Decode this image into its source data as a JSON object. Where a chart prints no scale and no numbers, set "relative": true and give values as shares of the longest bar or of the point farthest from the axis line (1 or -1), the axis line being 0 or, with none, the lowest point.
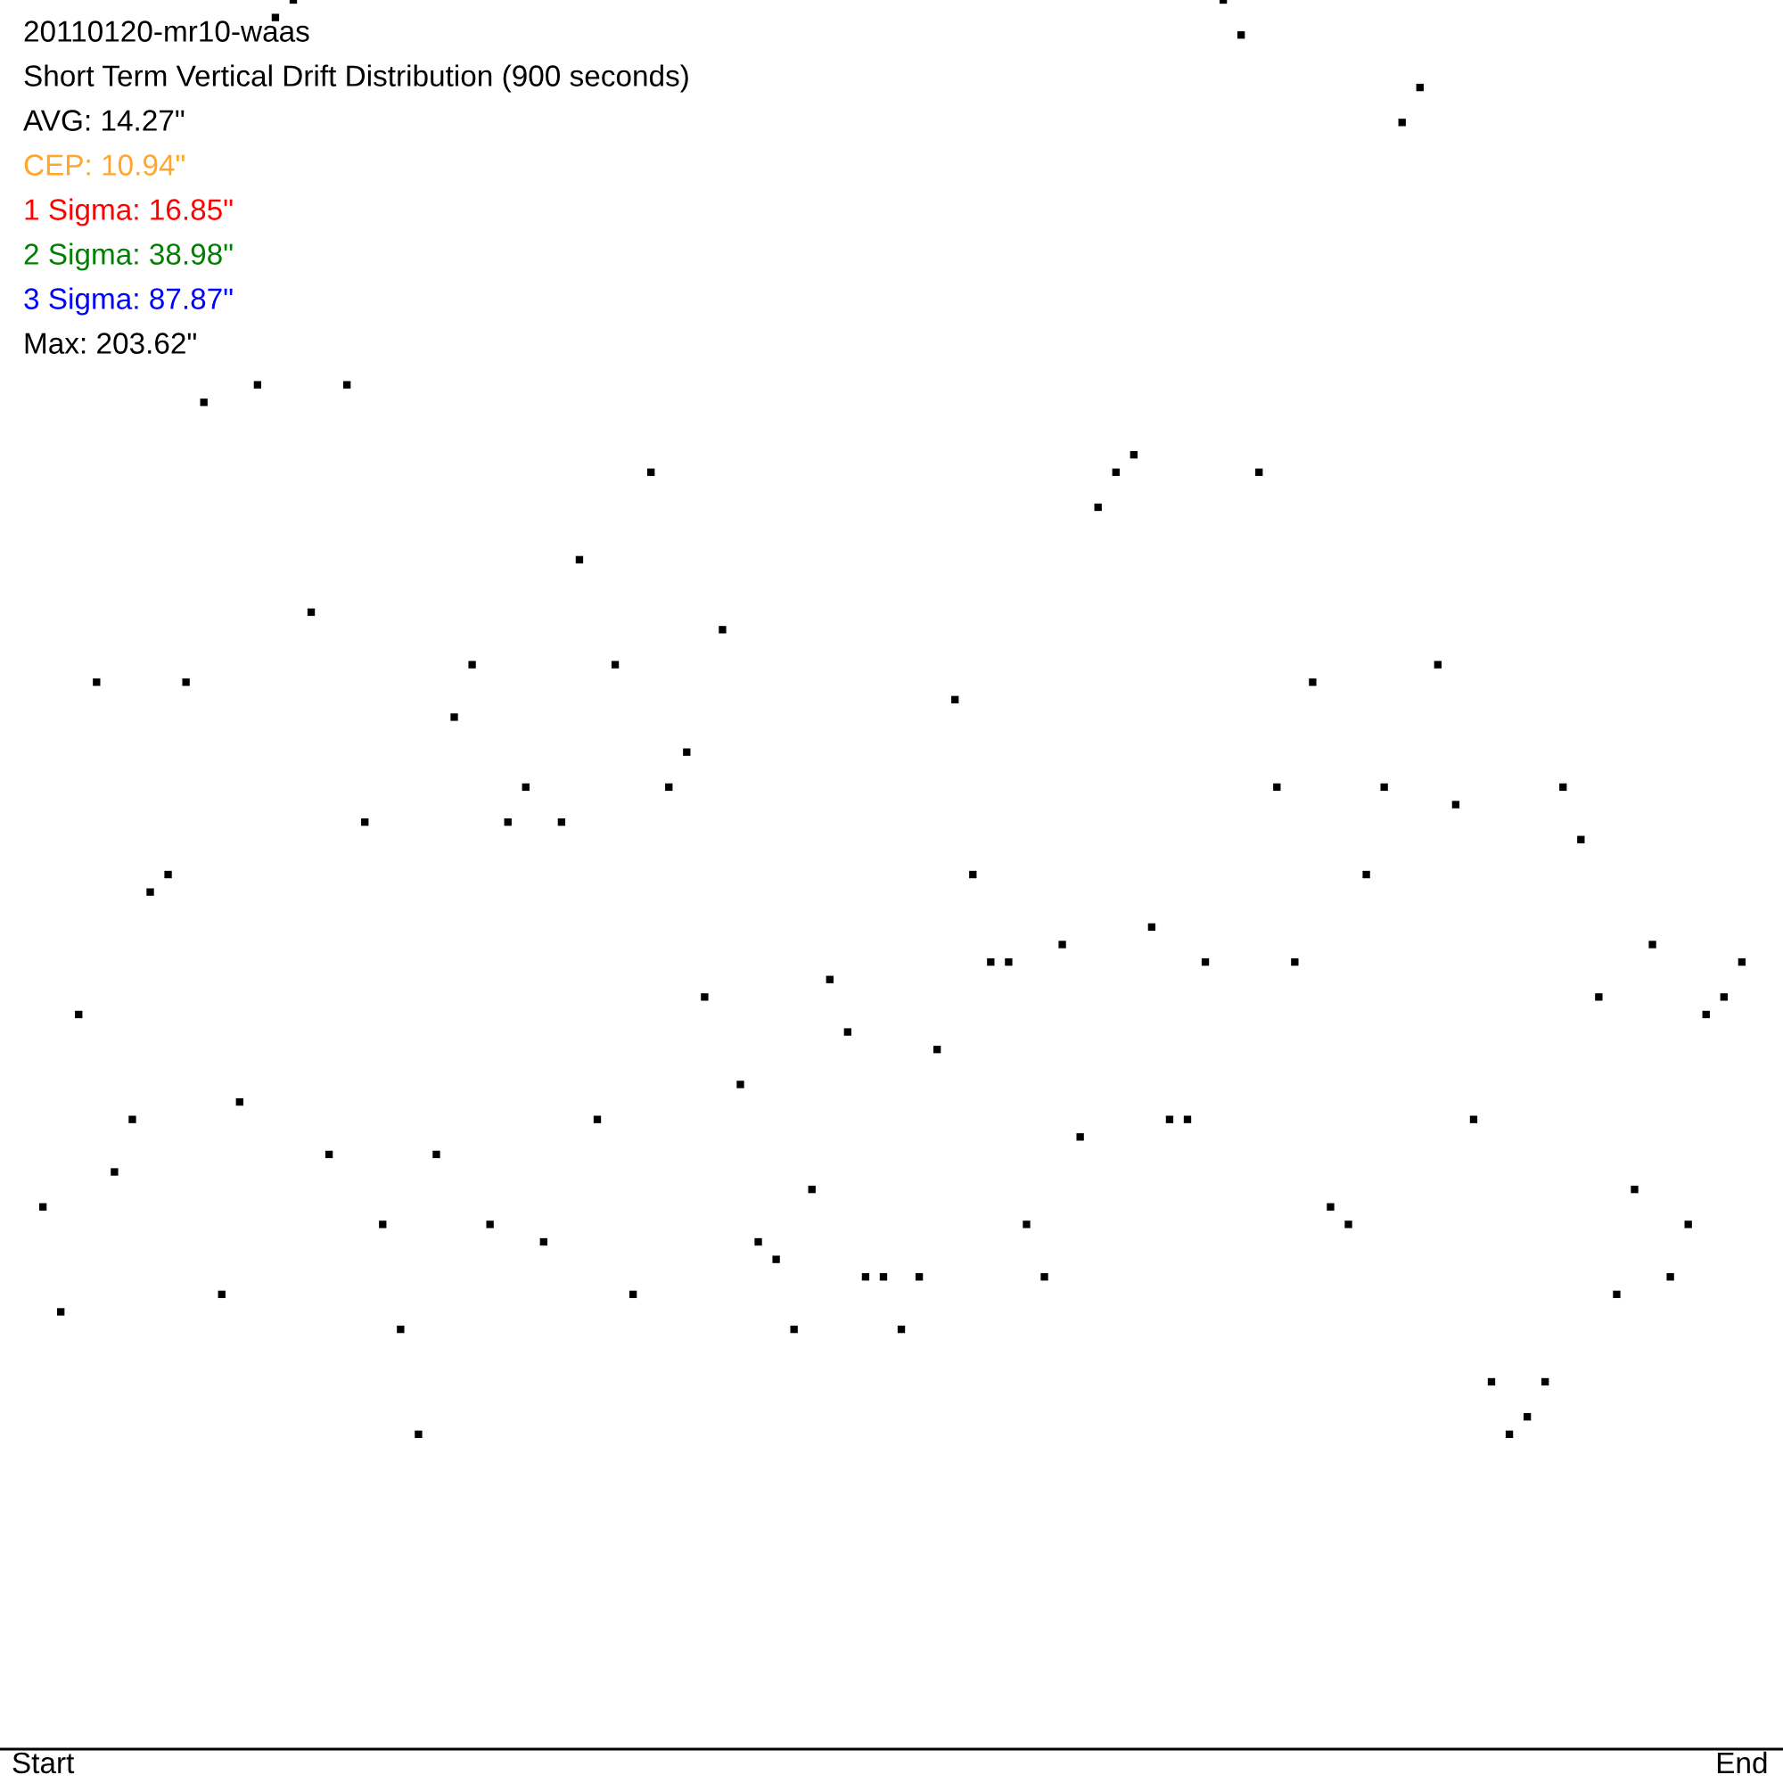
{
  "chart_data": {
    "type": "scatter",
    "title": "20110120-mr10-waas",
    "subtitle": "Short Term Vertical Drift Distribution (900 seconds)",
    "annotations": [
      "AVG: 14.27\"",
      "CEP: 10.94\"",
      "1 Sigma: 16.85\"",
      "2 Sigma: 38.98\"",
      "3 Sigma: 87.87\"",
      "Max: 203.62\""
    ],
    "relative": true,
    "marker": "square",
    "color": "#000000",
    "categories": [
      "Start",
      null,
      null,
      null,
      null,
      null,
      null,
      null,
      null,
      null,
      null,
      null,
      null,
      null,
      null,
      null,
      null,
      null,
      null,
      null,
      null,
      null,
      null,
      null,
      null,
      null,
      null,
      null,
      null,
      null,
      null,
      null,
      null,
      null,
      null,
      null,
      null,
      null,
      null,
      null,
      null,
      null,
      null,
      null,
      null,
      null,
      null,
      null,
      null,
      null,
      null,
      null,
      null,
      null,
      null,
      null,
      null,
      null,
      null,
      null,
      null,
      null,
      null,
      null,
      null,
      null,
      null,
      null,
      null,
      null,
      null,
      null,
      null,
      null,
      null,
      null,
      null,
      null,
      null,
      null,
      null,
      null,
      null,
      null,
      null,
      null,
      null,
      null,
      null,
      null,
      null,
      null,
      null,
      null,
      null,
      "End"
    ],
    "values": [
      0.31,
      0.25,
      0.42,
      0.61,
      0.33,
      0.36,
      0.49,
      0.5,
      0.61,
      0.77,
      0.26,
      0.37,
      0.78,
      0.99,
      1.0,
      0.65,
      0.34,
      0.78,
      0.53,
      0.3,
      0.24,
      0.18,
      0.34,
      0.59,
      0.62,
      0.3,
      0.53,
      0.55,
      0.29,
      0.53,
      0.68,
      0.36,
      0.62,
      0.26,
      0.73,
      0.55,
      0.57,
      0.43,
      0.64,
      0.38,
      0.29,
      0.28,
      0.24,
      0.32,
      0.44,
      0.41,
      0.27,
      0.27,
      0.24,
      0.27,
      0.4,
      0.6,
      0.5,
      0.45,
      0.45,
      0.3,
      0.27,
      0.46,
      0.35,
      0.71,
      0.73,
      0.74,
      0.47,
      0.36,
      0.36,
      0.45,
      1.0,
      0.98,
      0.73,
      0.55,
      0.45,
      0.61,
      0.31,
      0.3,
      0.5,
      0.55,
      0.93,
      0.95,
      0.62,
      0.54,
      0.36,
      0.21,
      0.18,
      0.19,
      0.21,
      0.55,
      0.52,
      0.43,
      0.26,
      0.32,
      0.46,
      0.27,
      0.3,
      0.42,
      0.43,
      0.45
    ]
  }
}
